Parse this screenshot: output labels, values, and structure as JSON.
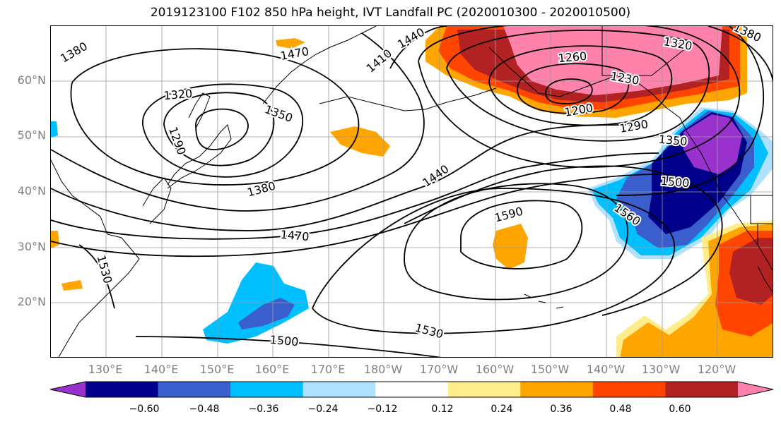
{
  "title": "2019123100 F102 850 hPa height, IVT Landfall PC (2020010300 - 2020010500)",
  "lat_labels": [
    "60°N",
    "50°N",
    "40°N",
    "30°N",
    "20°N"
  ],
  "lon_labels": [
    "130°E",
    "140°E",
    "150°E",
    "160°E",
    "170°E",
    "180°W",
    "170°W",
    "160°W",
    "150°W",
    "140°W",
    "130°W",
    "120°W"
  ],
  "contour_labels": [
    "1380",
    "1440",
    "1470",
    "1410",
    "1320",
    "1350",
    "1290",
    "1380",
    "1440",
    "1470",
    "1590",
    "1530",
    "1500",
    "1530",
    "1260",
    "1230",
    "1200",
    "1290",
    "1350",
    "1500",
    "1560",
    "1320",
    "1380"
  ],
  "colorbar": {
    "ticks": [
      "−0.60",
      "−0.48",
      "−0.36",
      "−0.24",
      "−0.12",
      "0.12",
      "0.24",
      "0.36",
      "0.48",
      "0.60"
    ],
    "colors": [
      "#9932cc",
      "#00008b",
      "#3a5fcd",
      "#00bfff",
      "#b0e2ff",
      "#ffffff",
      "#ffec8b",
      "#ffa500",
      "#ff4500",
      "#b22222",
      "#ff82ab"
    ]
  }
}
